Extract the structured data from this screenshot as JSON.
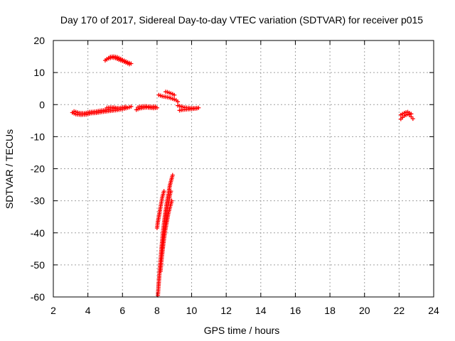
{
  "chart_data": {
    "type": "scatter",
    "title": "Day 170 of 2017, Sidereal Day-to-day VTEC variation (SDTVAR) for receiver p015",
    "xlabel": "GPS time / hours",
    "ylabel": "SDTVAR / TECUs",
    "xlim": [
      2,
      24
    ],
    "ylim": [
      -60,
      20
    ],
    "xticks": [
      "2",
      "4",
      "6",
      "8",
      "10",
      "12",
      "14",
      "16",
      "18",
      "20",
      "22",
      "24"
    ],
    "yticks": [
      "20",
      "10",
      "0",
      "-10",
      "-20",
      "-30",
      "-40",
      "-50",
      "-60"
    ],
    "grid": true,
    "marker": "+",
    "series": [
      {
        "name": "SDTVAR",
        "color": "#ff0000",
        "segments": [
          [
            [
              3.1,
              -2.5
            ],
            [
              3.3,
              -3.0
            ],
            [
              3.6,
              -3.2
            ],
            [
              3.9,
              -3.1
            ],
            [
              4.2,
              -2.7
            ],
            [
              4.5,
              -2.6
            ],
            [
              4.8,
              -2.3
            ],
            [
              5.1,
              -2.1
            ],
            [
              5.4,
              -1.9
            ],
            [
              5.7,
              -1.7
            ],
            [
              6.0,
              -1.4
            ],
            [
              6.3,
              -1.0
            ],
            [
              6.5,
              -0.6
            ]
          ],
          [
            [
              3.2,
              -2.1
            ],
            [
              3.5,
              -2.6
            ],
            [
              3.8,
              -2.7
            ],
            [
              4.1,
              -2.3
            ],
            [
              4.4,
              -2.2
            ],
            [
              4.7,
              -1.9
            ],
            [
              5.0,
              -1.7
            ],
            [
              5.3,
              -1.4
            ],
            [
              5.6,
              -1.2
            ],
            [
              5.9,
              -1.0
            ],
            [
              6.2,
              -0.7
            ]
          ],
          [
            [
              5.1,
              -1.0
            ],
            [
              5.3,
              -0.9
            ],
            [
              5.5,
              -0.9
            ],
            [
              5.7,
              -1.1
            ]
          ],
          [
            [
              5.0,
              13.8
            ],
            [
              5.2,
              14.4
            ],
            [
              5.4,
              14.7
            ],
            [
              5.6,
              14.5
            ],
            [
              5.8,
              14.0
            ],
            [
              6.0,
              13.6
            ],
            [
              6.2,
              13.1
            ],
            [
              6.4,
              12.6
            ]
          ],
          [
            [
              5.1,
              14.2
            ],
            [
              5.3,
              14.9
            ],
            [
              5.5,
              15.0
            ],
            [
              5.7,
              14.8
            ],
            [
              5.9,
              14.3
            ],
            [
              6.1,
              13.7
            ],
            [
              6.3,
              13.2
            ],
            [
              6.5,
              12.8
            ]
          ],
          [
            [
              6.8,
              -1.6
            ],
            [
              7.0,
              -1.2
            ],
            [
              7.2,
              -1.0
            ],
            [
              7.4,
              -0.9
            ],
            [
              7.6,
              -1.0
            ],
            [
              7.8,
              -1.1
            ],
            [
              8.0,
              -1.0
            ]
          ],
          [
            [
              6.9,
              -0.8
            ],
            [
              7.1,
              -0.6
            ],
            [
              7.3,
              -0.5
            ],
            [
              7.5,
              -0.6
            ],
            [
              7.7,
              -0.7
            ],
            [
              7.9,
              -0.6
            ]
          ],
          [
            [
              8.1,
              3.0
            ],
            [
              8.2,
              2.8
            ],
            [
              8.3,
              2.6
            ],
            [
              8.4,
              2.5
            ],
            [
              8.5,
              2.4
            ],
            [
              8.6,
              2.3
            ],
            [
              8.7,
              2.2
            ],
            [
              8.8,
              2.0
            ],
            [
              8.9,
              1.8
            ],
            [
              9.0,
              1.6
            ],
            [
              9.1,
              1.4
            ],
            [
              9.2,
              0.9
            ]
          ],
          [
            [
              8.5,
              4.0
            ],
            [
              8.6,
              3.9
            ],
            [
              8.7,
              3.7
            ],
            [
              8.8,
              3.5
            ],
            [
              8.9,
              3.3
            ],
            [
              9.0,
              3.0
            ]
          ],
          [
            [
              9.2,
              -0.3
            ],
            [
              9.4,
              -0.6
            ],
            [
              9.6,
              -0.9
            ],
            [
              9.8,
              -1.0
            ],
            [
              10.0,
              -1.1
            ],
            [
              10.2,
              -1.1
            ],
            [
              10.4,
              -1.0
            ]
          ],
          [
            [
              9.3,
              -1.8
            ],
            [
              9.5,
              -1.6
            ],
            [
              9.7,
              -1.5
            ],
            [
              9.9,
              -1.4
            ],
            [
              10.1,
              -1.3
            ],
            [
              10.3,
              -1.2
            ]
          ],
          [
            [
              8.05,
              -59.5
            ],
            [
              8.08,
              -57.0
            ],
            [
              8.12,
              -54.0
            ],
            [
              8.16,
              -51.0
            ],
            [
              8.2,
              -48.5
            ],
            [
              8.24,
              -46.0
            ],
            [
              8.28,
              -43.5
            ],
            [
              8.32,
              -41.0
            ],
            [
              8.36,
              -39.0
            ],
            [
              8.4,
              -37.0
            ],
            [
              8.45,
              -35.0
            ],
            [
              8.5,
              -33.0
            ],
            [
              8.55,
              -31.0
            ],
            [
              8.6,
              -29.5
            ],
            [
              8.65,
              -28.0
            ],
            [
              8.7,
              -26.5
            ],
            [
              8.75,
              -25.0
            ],
            [
              8.8,
              -24.0
            ],
            [
              8.85,
              -23.0
            ],
            [
              8.9,
              -22.0
            ]
          ],
          [
            [
              8.0,
              -38.5
            ],
            [
              8.05,
              -36.5
            ],
            [
              8.1,
              -35.0
            ],
            [
              8.15,
              -33.5
            ],
            [
              8.2,
              -32.0
            ],
            [
              8.25,
              -30.5
            ],
            [
              8.3,
              -29.0
            ],
            [
              8.35,
              -28.0
            ],
            [
              8.4,
              -27.0
            ]
          ],
          [
            [
              8.2,
              -52.0
            ],
            [
              8.25,
              -49.0
            ],
            [
              8.3,
              -46.5
            ],
            [
              8.35,
              -44.0
            ],
            [
              8.4,
              -42.0
            ],
            [
              8.45,
              -40.0
            ],
            [
              8.5,
              -38.5
            ],
            [
              8.55,
              -37.0
            ],
            [
              8.6,
              -35.5
            ],
            [
              8.65,
              -34.0
            ],
            [
              8.7,
              -33.0
            ],
            [
              8.75,
              -32.0
            ],
            [
              8.8,
              -31.0
            ],
            [
              8.85,
              -30.0
            ]
          ],
          [
            [
              8.3,
              -45.0
            ],
            [
              8.35,
              -42.5
            ],
            [
              8.4,
              -40.5
            ],
            [
              8.45,
              -38.5
            ],
            [
              8.5,
              -36.5
            ],
            [
              8.55,
              -34.5
            ],
            [
              8.6,
              -32.5
            ],
            [
              8.65,
              -31.0
            ],
            [
              8.7,
              -29.5
            ],
            [
              8.75,
              -28.0
            ],
            [
              8.8,
              -27.0
            ]
          ],
          [
            [
              22.1,
              -4.5
            ],
            [
              22.2,
              -4.0
            ],
            [
              22.3,
              -3.5
            ],
            [
              22.4,
              -3.2
            ],
            [
              22.5,
              -3.0
            ],
            [
              22.6,
              -3.2
            ],
            [
              22.7,
              -3.8
            ],
            [
              22.8,
              -4.4
            ]
          ],
          [
            [
              22.1,
              -3.2
            ],
            [
              22.2,
              -2.9
            ],
            [
              22.3,
              -2.6
            ],
            [
              22.4,
              -2.4
            ],
            [
              22.5,
              -2.3
            ],
            [
              22.6,
              -2.6
            ],
            [
              22.7,
              -2.9
            ]
          ]
        ]
      }
    ]
  }
}
